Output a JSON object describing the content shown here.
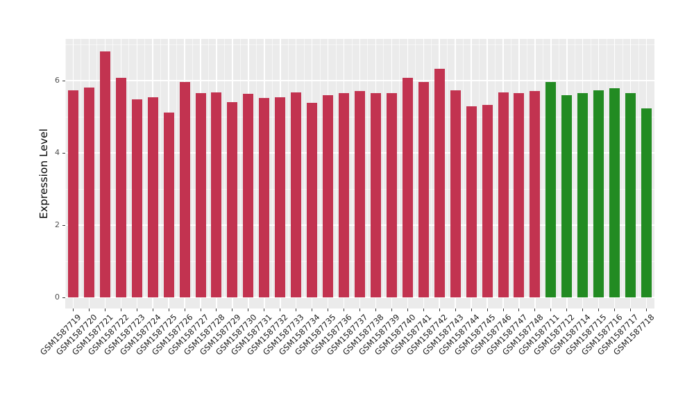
{
  "chart_data": {
    "type": "bar",
    "title": "",
    "xlabel": "",
    "ylabel": "Expression Level",
    "ylim": [
      0,
      7.15
    ],
    "y_ticks": [
      0,
      2,
      4,
      6
    ],
    "y_minor_gridlines": [
      1,
      3,
      5,
      7
    ],
    "grid": "on",
    "legend": "none",
    "panel_background": "#EBEBEB",
    "gridline_color": "#FFFFFF",
    "axis_text_color": "#4D4D4D",
    "tick_mark_color": "#333333",
    "categories": [
      "GSM1587719",
      "GSM1587720",
      "GSM1587721",
      "GSM1587722",
      "GSM1587723",
      "GSM1587724",
      "GSM1587725",
      "GSM1587726",
      "GSM1587727",
      "GSM1587728",
      "GSM1587729",
      "GSM1587730",
      "GSM1587731",
      "GSM1587732",
      "GSM1587733",
      "GSM1587734",
      "GSM1587735",
      "GSM1587736",
      "GSM1587737",
      "GSM1587738",
      "GSM1587739",
      "GSM1587740",
      "GSM1587741",
      "GSM1587742",
      "GSM1587743",
      "GSM1587744",
      "GSM1587745",
      "GSM1587746",
      "GSM1587747",
      "GSM1587748",
      "GSM1587711",
      "GSM1587712",
      "GSM1587714",
      "GSM1587715",
      "GSM1587716",
      "GSM1587717",
      "GSM1587718"
    ],
    "values": [
      5.73,
      5.8,
      6.81,
      6.08,
      5.49,
      5.53,
      5.12,
      5.96,
      5.65,
      5.68,
      5.4,
      5.63,
      5.52,
      5.54,
      5.67,
      5.39,
      5.6,
      5.65,
      5.72,
      5.65,
      5.66,
      6.08,
      5.97,
      6.32,
      5.74,
      5.28,
      5.33,
      5.68,
      5.66,
      5.71,
      5.96,
      5.6,
      5.66,
      5.73,
      5.79,
      5.66,
      5.24
    ],
    "groups": [
      {
        "name": "crimson-group",
        "color": "#C23350",
        "start_index": 0,
        "end_index": 29
      },
      {
        "name": "green-group",
        "color": "#228B22",
        "start_index": 30,
        "end_index": 36
      }
    ]
  }
}
